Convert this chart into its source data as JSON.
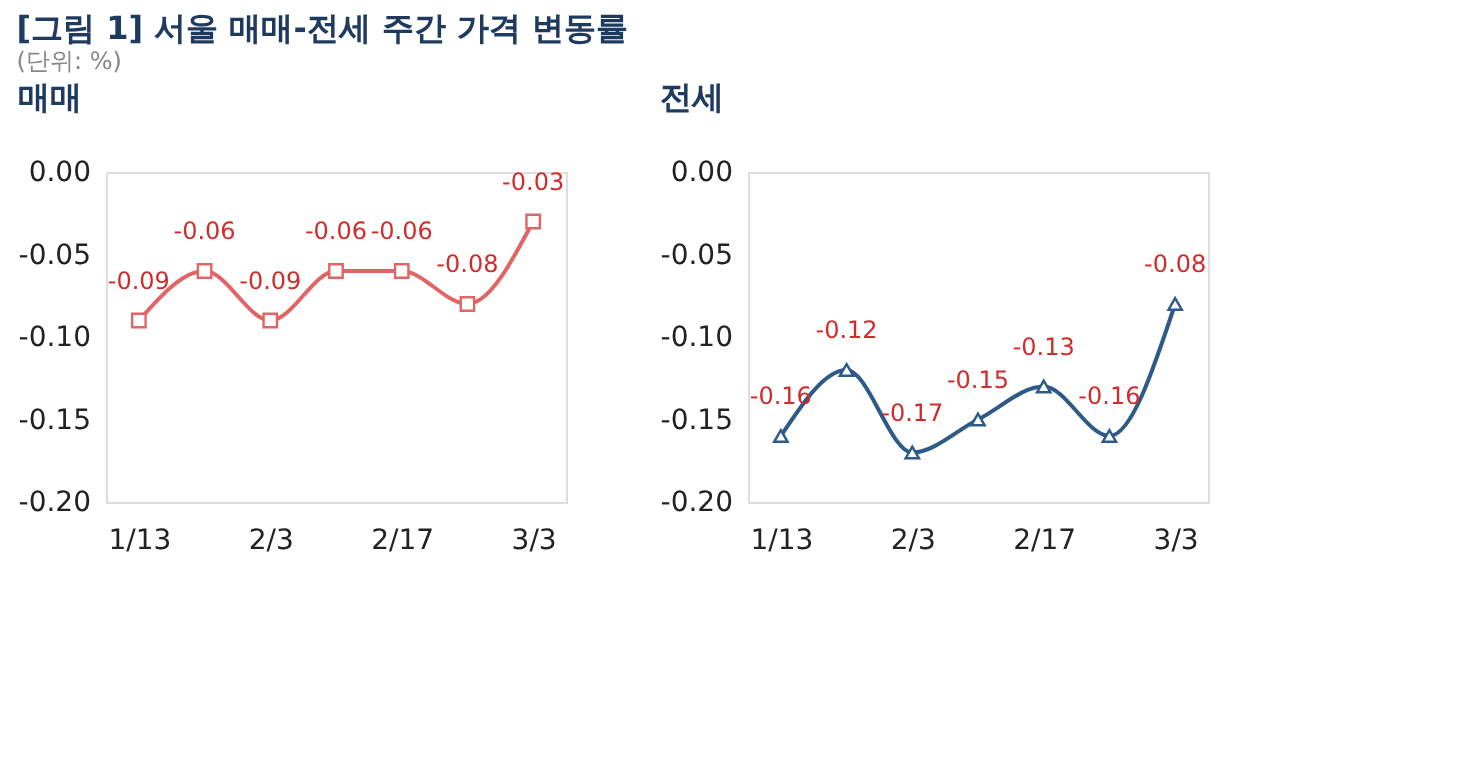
{
  "chart_data": [
    {
      "type": "line",
      "title": "매매",
      "annotations": [
        "[그림 1] 서울 매매-전세 주간 가격 변동률",
        "(단위: %)"
      ],
      "categories": [
        "1/13",
        null,
        "2/3",
        null,
        "2/17",
        null,
        "3/3"
      ],
      "series": [
        {
          "color": "#e06666",
          "values": [
            -0.09,
            -0.06,
            -0.09,
            -0.06,
            -0.06,
            -0.08,
            -0.03
          ]
        }
      ],
      "ylim": [
        -0.2,
        0
      ],
      "yticks": [
        {
          "value": -0.2,
          "label": "-0.20"
        },
        {
          "value": -0.15,
          "label": "-0.15"
        },
        {
          "value": -0.1,
          "label": "-0.10"
        },
        {
          "value": -0.05,
          "label": "-0.05"
        },
        {
          "value": 0,
          "label": "0.00"
        }
      ],
      "data_labels": true,
      "marker": "square",
      "line_style": "solid",
      "grid": false
    },
    {
      "type": "line",
      "title": "전세",
      "categories": [
        "1/13",
        null,
        "2/3",
        null,
        "2/17",
        null,
        "3/3"
      ],
      "series": [
        {
          "color": "#2e5a87",
          "values": [
            -0.16,
            -0.12,
            -0.17,
            -0.15,
            -0.13,
            -0.16,
            -0.08
          ]
        }
      ],
      "ylim": [
        -0.2,
        0
      ],
      "yticks": [
        {
          "value": -0.2,
          "label": "-0.20"
        },
        {
          "value": -0.15,
          "label": "-0.15"
        },
        {
          "value": -0.1,
          "label": "-0.10"
        },
        {
          "value": -0.05,
          "label": "-0.05"
        },
        {
          "value": 0,
          "label": "0.00"
        }
      ],
      "data_labels": true,
      "marker": "triangle",
      "line_style": "solid",
      "grid": false
    }
  ]
}
